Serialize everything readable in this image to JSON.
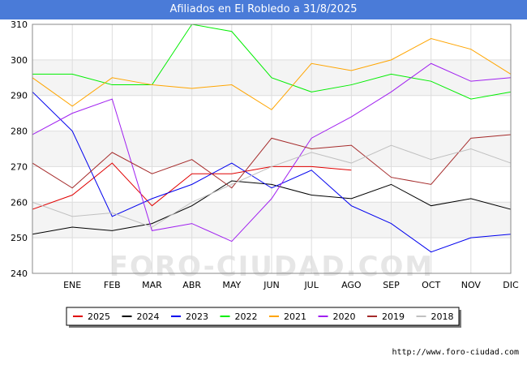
{
  "page": {
    "title": "Afiliados en El Robledo a 31/8/2025",
    "source": "http://www.foro-ciudad.com",
    "watermark": "FORO-CIUDAD.COM"
  },
  "chart_data": {
    "type": "line",
    "title": "Afiliados en El Robledo a 31/8/2025",
    "xlabel": "",
    "ylabel": "",
    "ylim": [
      240,
      310
    ],
    "yticks": [
      240,
      250,
      260,
      270,
      280,
      290,
      300,
      310
    ],
    "grid": true,
    "legend_placement": "bottom",
    "categories": [
      "DIC_prev",
      "ENE",
      "FEB",
      "MAR",
      "ABR",
      "MAY",
      "JUN",
      "JUL",
      "AGO",
      "SEP",
      "OCT",
      "NOV",
      "DIC"
    ],
    "x_tick_labels": [
      "",
      "ENE",
      "FEB",
      "MAR",
      "ABR",
      "MAY",
      "JUN",
      "JUL",
      "AGO",
      "SEP",
      "OCT",
      "NOV",
      "DIC"
    ],
    "series": [
      {
        "name": "2025",
        "color": "#e00000",
        "values": [
          258,
          262,
          271,
          259,
          268,
          268,
          270,
          270,
          269,
          null,
          null,
          null,
          null
        ]
      },
      {
        "name": "2024",
        "color": "#000000",
        "values": [
          251,
          253,
          252,
          254,
          259,
          266,
          265,
          262,
          261,
          265,
          259,
          261,
          258
        ]
      },
      {
        "name": "2023",
        "color": "#0000ee",
        "values": [
          291,
          280,
          256,
          261,
          265,
          271,
          264,
          269,
          259,
          254,
          246,
          250,
          251
        ]
      },
      {
        "name": "2022",
        "color": "#00ee00",
        "values": [
          296,
          296,
          293,
          293,
          310,
          308,
          295,
          291,
          293,
          296,
          294,
          289,
          291
        ]
      },
      {
        "name": "2021",
        "color": "#ffa500",
        "values": [
          295,
          287,
          295,
          293,
          292,
          293,
          286,
          299,
          297,
          300,
          306,
          303,
          296
        ]
      },
      {
        "name": "2020",
        "color": "#a020f0",
        "values": [
          279,
          285,
          289,
          252,
          254,
          249,
          261,
          278,
          284,
          291,
          299,
          294,
          295
        ]
      },
      {
        "name": "2019",
        "color": "#a52a2a",
        "values": [
          271,
          264,
          274,
          268,
          272,
          264,
          278,
          275,
          276,
          267,
          265,
          278,
          279
        ]
      },
      {
        "name": "2018",
        "color": "#c0c0c0",
        "values": [
          260,
          256,
          257,
          253,
          260,
          265,
          270,
          274,
          271,
          276,
          272,
          275,
          271
        ]
      }
    ]
  }
}
